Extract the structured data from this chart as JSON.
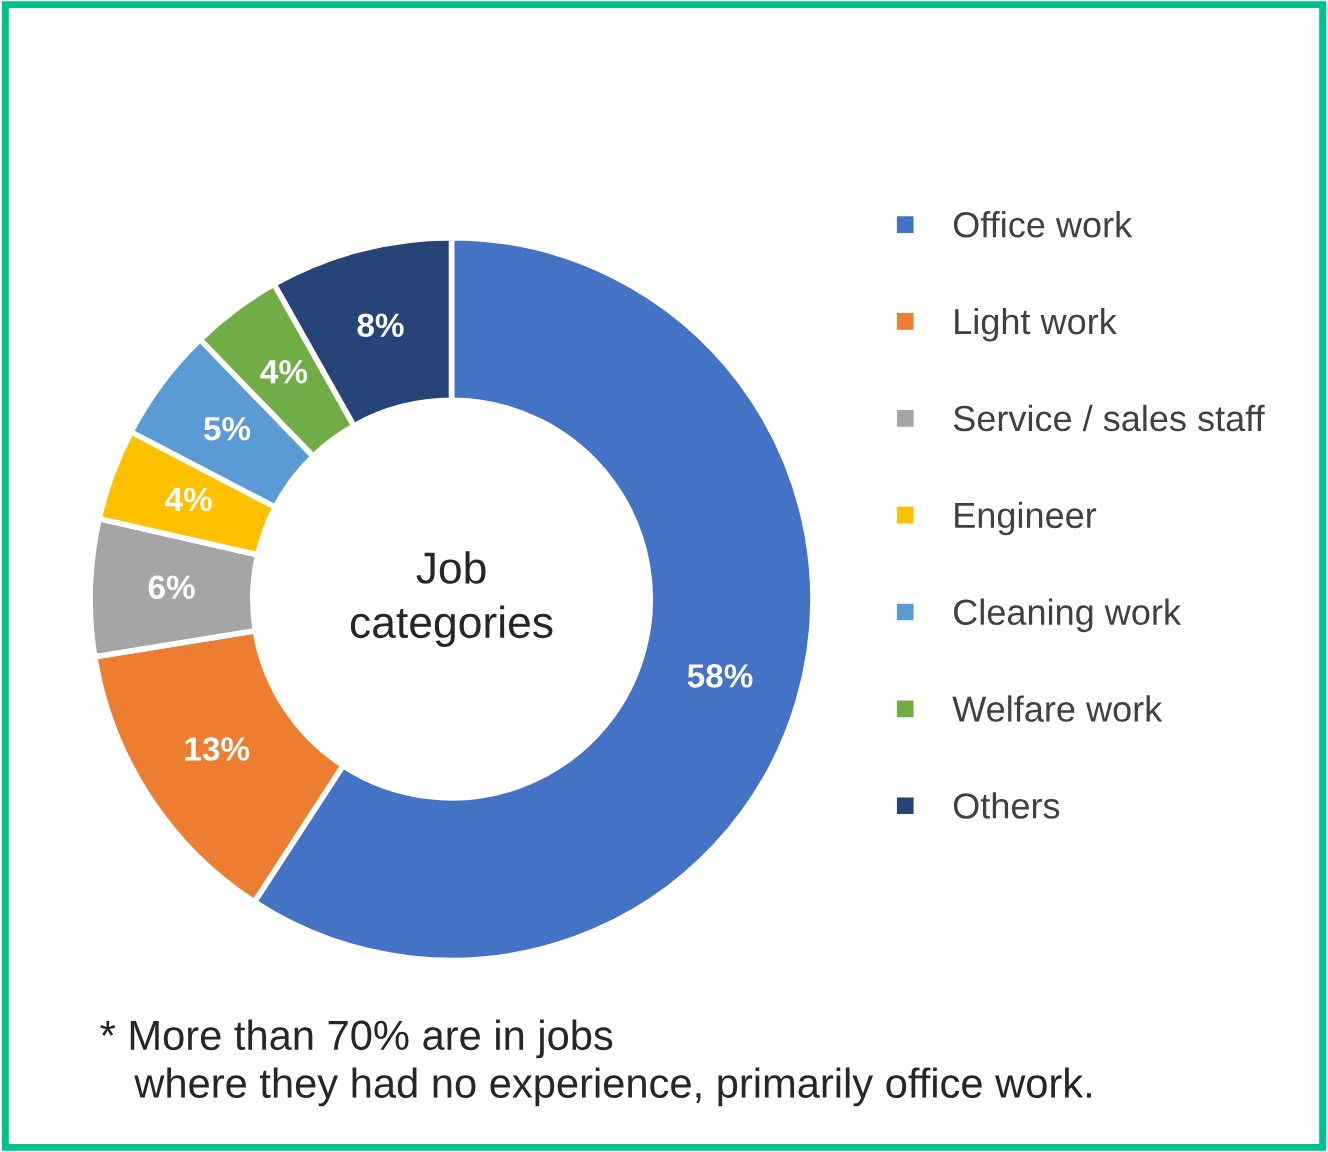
{
  "chart_data": {
    "type": "donut",
    "title": "Job\ncategories",
    "categories": [
      "Office work",
      "Light work",
      "Service / sales staff",
      "Engineer",
      "Cleaning work",
      "Welfare work",
      "Others"
    ],
    "values": [
      58,
      13,
      6,
      4,
      5,
      4,
      8
    ],
    "value_labels": [
      "58%",
      "13%",
      "6%",
      "4%",
      "5%",
      "4%",
      "8%"
    ],
    "colors": [
      "#4472c4",
      "#ed7d31",
      "#a5a5a5",
      "#ffc000",
      "#5b9bd5",
      "#70ad47",
      "#264478"
    ],
    "legend": "right",
    "annotations": [
      "* More than 70% are in jobs\n   where they had no experience, primarily office work."
    ]
  }
}
